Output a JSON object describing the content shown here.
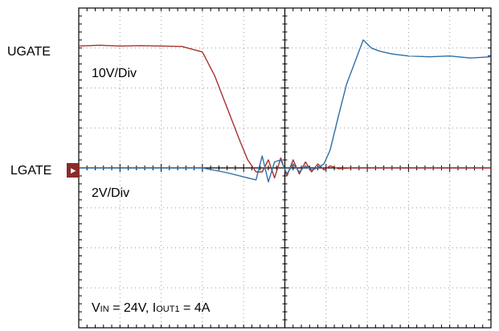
{
  "chart_data": {
    "type": "line",
    "title": "",
    "xlabel": "",
    "ylabel": "",
    "grid": true,
    "divisions": {
      "x": 10,
      "y": 8
    },
    "xlim": [
      0,
      10
    ],
    "ylim": [
      -4,
      4
    ],
    "channel_labels": {
      "upper": "UGATE",
      "lower": "LGATE"
    },
    "scale_labels": {
      "upper": "10V/Div",
      "lower": "2V/Div"
    },
    "conditions": {
      "v_sym": "V",
      "v_sub": "IN",
      "v_val": " = 24V, ",
      "i_sym": "I",
      "i_sub": "OUT1",
      "i_val": " = 4A"
    },
    "series": [
      {
        "color": "#a8302c",
        "x": [
          0.0,
          0.5,
          1.0,
          1.5,
          2.0,
          2.5,
          3.0,
          3.3,
          3.6,
          3.9,
          4.1,
          4.3,
          4.45,
          4.6,
          4.75,
          4.9,
          5.05,
          5.2,
          5.35,
          5.5,
          5.65,
          5.8,
          5.95,
          6.1,
          6.3,
          6.6,
          7.0,
          8.0,
          9.0,
          10.0
        ],
        "y": [
          3.05,
          3.07,
          3.05,
          3.06,
          3.05,
          3.04,
          2.9,
          2.3,
          1.5,
          0.7,
          0.2,
          -0.1,
          -0.1,
          0.2,
          -0.25,
          0.25,
          -0.2,
          0.2,
          -0.15,
          0.15,
          -0.1,
          0.1,
          -0.05,
          0.05,
          -0.02,
          0.0,
          0.0,
          0.0,
          0.0,
          0.0
        ]
      },
      {
        "color": "#2f6fa8",
        "x": [
          0.0,
          1.0,
          2.0,
          3.0,
          3.6,
          4.1,
          4.3,
          4.45,
          4.6,
          4.75,
          4.9,
          5.05,
          5.2,
          5.35,
          5.5,
          5.65,
          5.8,
          5.95,
          6.1,
          6.3,
          6.5,
          6.7,
          6.9,
          7.1,
          7.3,
          7.6,
          8.0,
          8.5,
          9.0,
          9.5,
          10.0
        ],
        "y": [
          0.0,
          0.0,
          0.0,
          0.0,
          -0.12,
          -0.25,
          -0.3,
          0.3,
          -0.35,
          0.15,
          0.2,
          -0.15,
          0.1,
          -0.1,
          0.05,
          -0.05,
          0.0,
          0.1,
          0.45,
          1.3,
          2.1,
          2.65,
          3.2,
          3.0,
          2.92,
          2.85,
          2.8,
          2.78,
          2.8,
          2.75,
          2.78
        ]
      }
    ]
  }
}
